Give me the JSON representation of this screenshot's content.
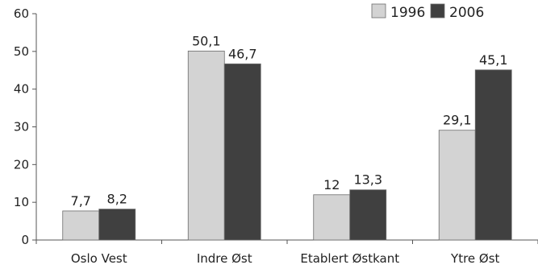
{
  "chart_data": {
    "type": "bar",
    "categories": [
      "Oslo Vest",
      "Indre Øst",
      "Etablert Østkant",
      "Ytre Øst"
    ],
    "series": [
      {
        "name": "1996",
        "values": [
          7.7,
          50.1,
          12,
          29.1
        ],
        "labels": [
          "7,7",
          "50,1",
          "12",
          "29,1"
        ],
        "color": "#d3d3d3"
      },
      {
        "name": "2006",
        "values": [
          8.2,
          46.7,
          13.3,
          45.1
        ],
        "labels": [
          "8,2",
          "46,7",
          "13,3",
          "45,1"
        ],
        "color": "#404040"
      }
    ],
    "ylim": [
      0,
      60
    ],
    "yticks": [
      "0",
      "10",
      "20",
      "30",
      "40",
      "50",
      "60"
    ],
    "legend_position": "top-right",
    "grid": false
  }
}
